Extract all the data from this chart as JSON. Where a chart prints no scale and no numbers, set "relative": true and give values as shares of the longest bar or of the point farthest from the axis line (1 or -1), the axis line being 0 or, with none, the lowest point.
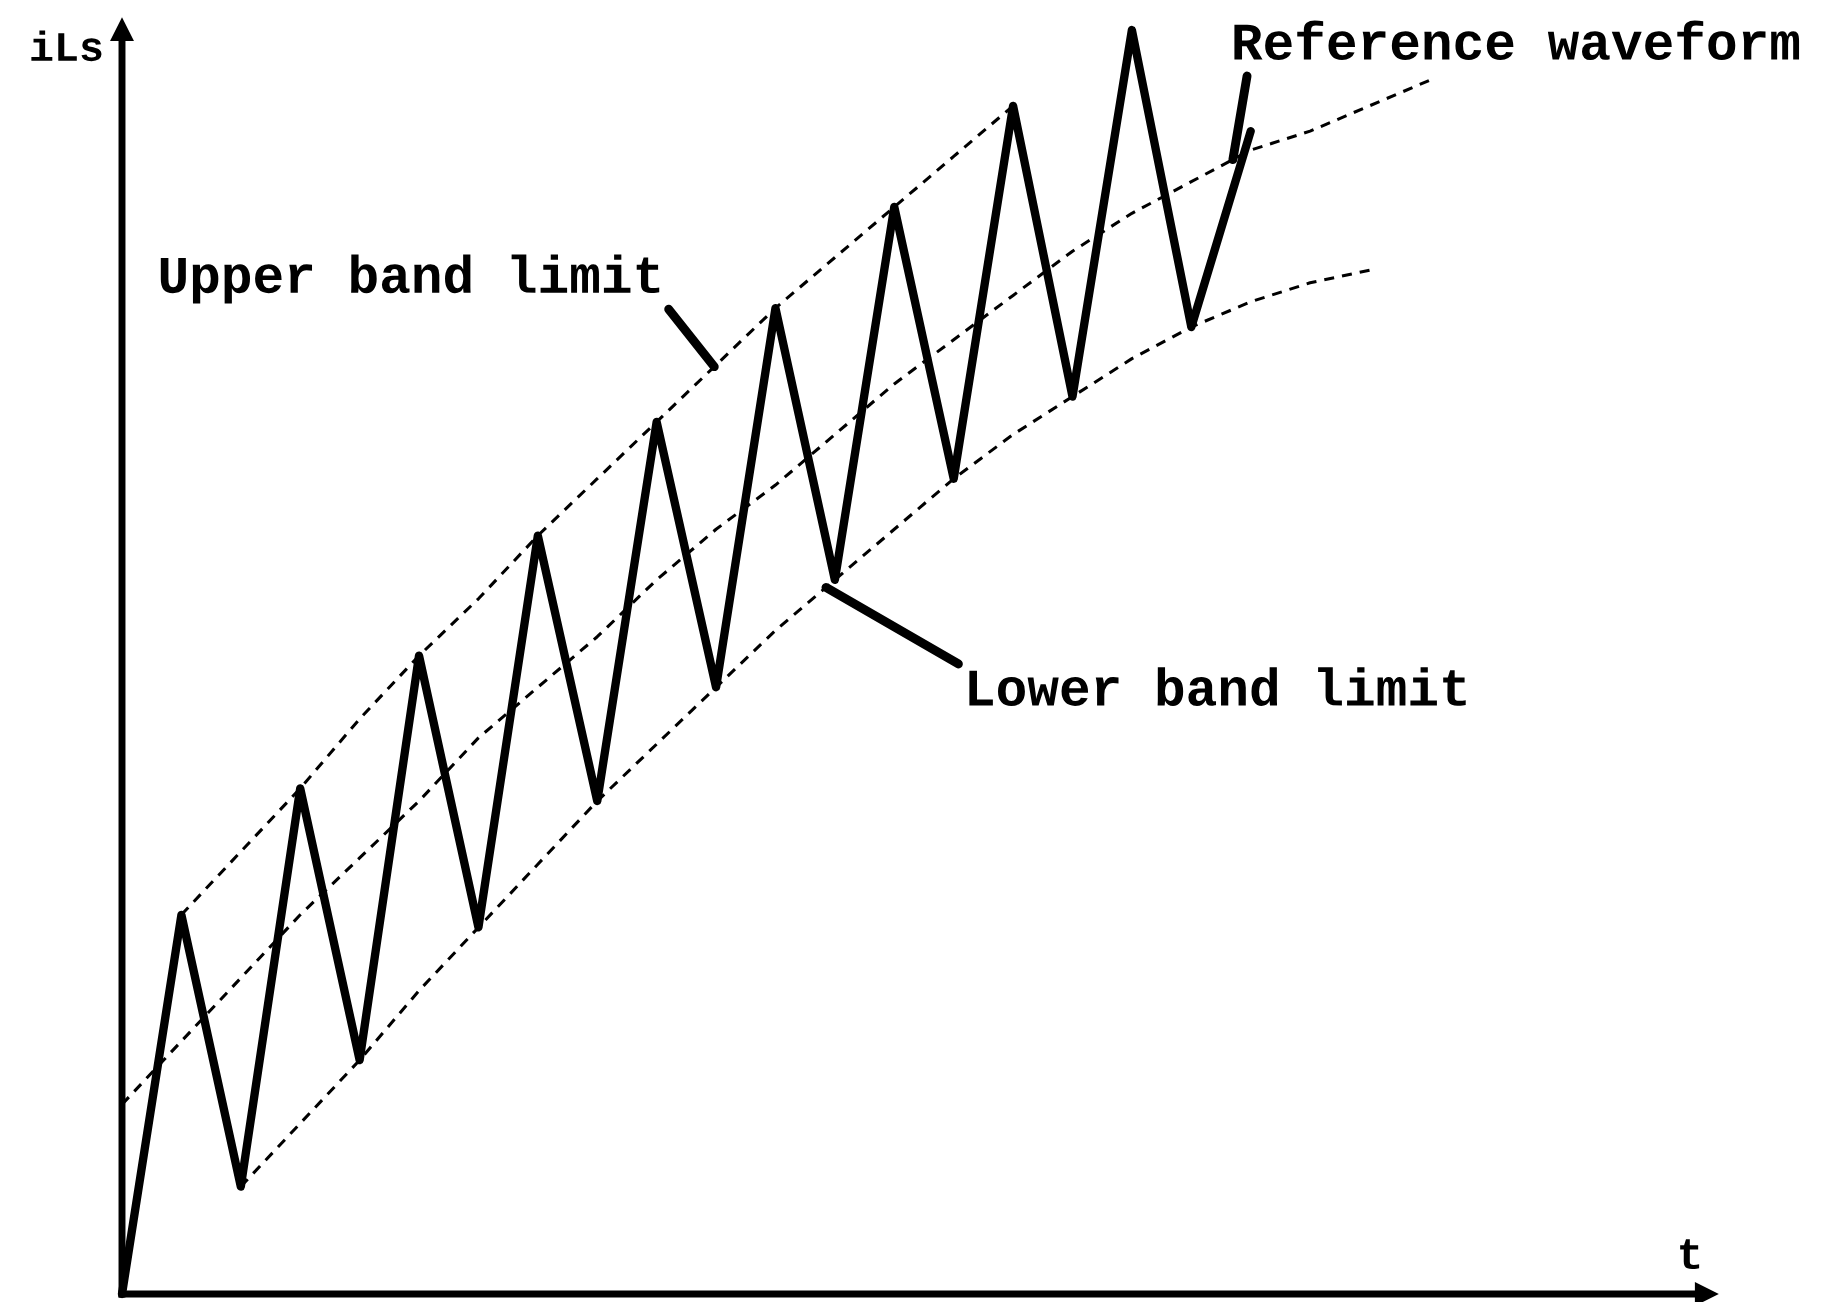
{
  "chart_data": {
    "type": "line",
    "relative": true,
    "xlabel": "t",
    "ylabel": "iLs",
    "categories": [
      null,
      null,
      null,
      null,
      null,
      null,
      null,
      null,
      null,
      null,
      null,
      null,
      null,
      null,
      null,
      null,
      null,
      null,
      null,
      null,
      null,
      null,
      null
    ],
    "series": [
      {
        "color": "#000000",
        "line_style": "solid",
        "values": [
          0,
          0.3,
          0.085,
          0.4,
          0.185,
          0.505,
          0.29,
          0.6,
          0.39,
          0.69,
          0.48,
          0.78,
          0.565,
          0.86,
          0.645,
          0.94,
          0.71,
          1,
          0.765,
          0.92,
          null,
          null,
          null
        ]
      },
      {
        "name": "Upper band limit",
        "color": "#000000",
        "line_style": "dashed",
        "values": [
          null,
          0.3,
          0.35,
          0.4,
          0.455,
          0.505,
          0.55,
          0.6,
          0.645,
          0.69,
          0.735,
          0.78,
          0.82,
          0.86,
          0.9,
          0.94,
          null,
          null,
          null,
          null,
          null,
          null,
          null
        ]
      },
      {
        "name": "Reference waveform",
        "color": "#000000",
        "line_style": "dashed",
        "values": [
          0.15,
          0.2,
          0.25,
          0.3,
          0.345,
          0.39,
          0.44,
          0.48,
          0.52,
          0.565,
          0.605,
          0.64,
          0.68,
          0.72,
          0.755,
          0.79,
          0.825,
          0.855,
          0.88,
          0.905,
          0.92,
          0.94,
          0.96
        ]
      },
      {
        "name": "Lower band limit",
        "color": "#000000",
        "line_style": "dashed",
        "values": [
          null,
          null,
          0.085,
          0.135,
          0.185,
          0.24,
          0.29,
          0.34,
          0.39,
          0.435,
          0.48,
          0.525,
          0.565,
          0.605,
          0.645,
          0.68,
          0.71,
          0.74,
          0.765,
          0.785,
          0.8,
          0.81,
          null
        ]
      }
    ]
  }
}
